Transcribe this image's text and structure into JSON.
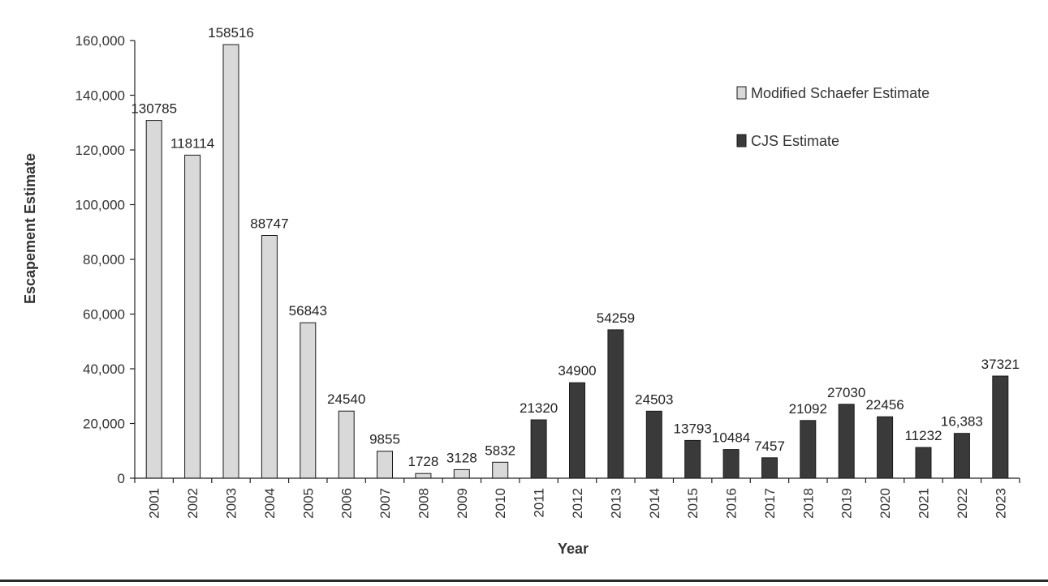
{
  "chart_data": {
    "type": "bar",
    "title": "",
    "xlabel": "Year",
    "ylabel": "Escapement Estimate",
    "ylim": [
      0,
      160000
    ],
    "yticks": [
      0,
      20000,
      40000,
      60000,
      80000,
      100000,
      120000,
      140000,
      160000
    ],
    "ytick_labels": [
      "0",
      "20,000",
      "40,000",
      "60,000",
      "80,000",
      "100,000",
      "120,000",
      "140,000",
      "160,000"
    ],
    "grid": false,
    "legend_position": "top-right",
    "categories": [
      "2001",
      "2002",
      "2003",
      "2004",
      "2005",
      "2006",
      "2007",
      "2008",
      "2009",
      "2010",
      "2011",
      "2012",
      "2013",
      "2014",
      "2015",
      "2016",
      "2017",
      "2018",
      "2019",
      "2020",
      "2021",
      "2022",
      "2023"
    ],
    "values": [
      130785,
      118114,
      158516,
      88747,
      56843,
      24540,
      9855,
      1728,
      3128,
      5832,
      21320,
      34900,
      54259,
      24503,
      13793,
      10484,
      7457,
      21092,
      27030,
      22456,
      11232,
      16383,
      37321
    ],
    "value_labels": [
      "130785",
      "118114",
      "158516",
      "88747",
      "56843",
      "24540",
      "9855",
      "1728",
      "3128",
      "5832",
      "21320",
      "34900",
      "54259",
      "24503",
      "13793",
      "10484",
      "7457",
      "21092",
      "27030",
      "22456",
      "11232",
      "16,383",
      "37321"
    ],
    "series_index": [
      0,
      0,
      0,
      0,
      0,
      0,
      0,
      0,
      0,
      0,
      1,
      1,
      1,
      1,
      1,
      1,
      1,
      1,
      1,
      1,
      1,
      1,
      1
    ],
    "series": [
      {
        "name": "Modified Schaefer Estimate",
        "color": "#d9d9d9"
      },
      {
        "name": "CJS Estimate",
        "color": "#3a3a3a"
      }
    ]
  }
}
